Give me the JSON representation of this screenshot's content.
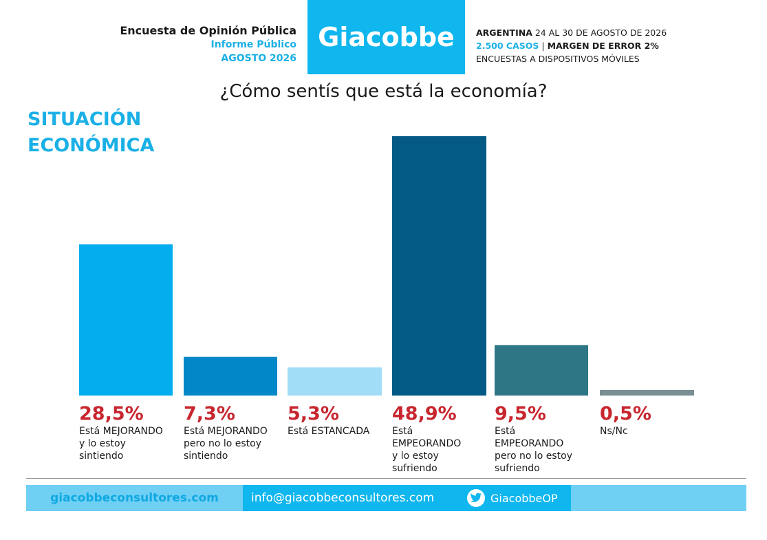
{
  "header": {
    "left": {
      "line1": "Encuesta de Opinión Pública",
      "line2": "Informe Público",
      "line3": "AGOSTO 2026"
    },
    "logo": "Giacobbe",
    "right": {
      "country": "ARGENTINA",
      "dates": "24 AL 30 DE AGOSTO DE 2026",
      "cases": "2.500 CASOS",
      "separator": "|",
      "margin": "MARGEN DE ERROR 2%",
      "method": "ENCUESTAS A DISPOSITIVOS MÓVILES"
    }
  },
  "question": "¿Cómo sentís que está la economía?",
  "section_title": {
    "line1": "SITUACIÓN",
    "line2": "ECONÓMICA"
  },
  "chart_data": {
    "type": "bar",
    "title": "¿Cómo sentís que está la economía?",
    "categories": [
      "Está MEJORANDO\ny lo estoy\nsintiendo",
      "Está MEJORANDO\npero no lo estoy\nsintiendo",
      "Está ESTANCADA",
      "Está\nEMPEORANDO\ny lo estoy\nsufriendo",
      "Está\nEMPEORANDO\npero no lo estoy\nsufriendo",
      "Ns/Nc"
    ],
    "values": [
      28.5,
      7.3,
      5.3,
      48.9,
      9.5,
      0.5
    ],
    "value_labels": [
      "28,5%",
      "7,3%",
      "5,3%",
      "48,9%",
      "9,5%",
      "0,5%"
    ],
    "colors": [
      "#04aeee",
      "#0288c8",
      "#a1ddf6",
      "#025a85",
      "#2e7686",
      "#7b8e94"
    ],
    "ylim": [
      0,
      48.9
    ],
    "grid": false,
    "legend": "none"
  },
  "footer": {
    "website": "giacobbeconsultores.com",
    "email": "info@giacobbeconsultores.com",
    "twitter": "GiacobbeOP",
    "twitter_icon": "twitter-bird-icon"
  }
}
